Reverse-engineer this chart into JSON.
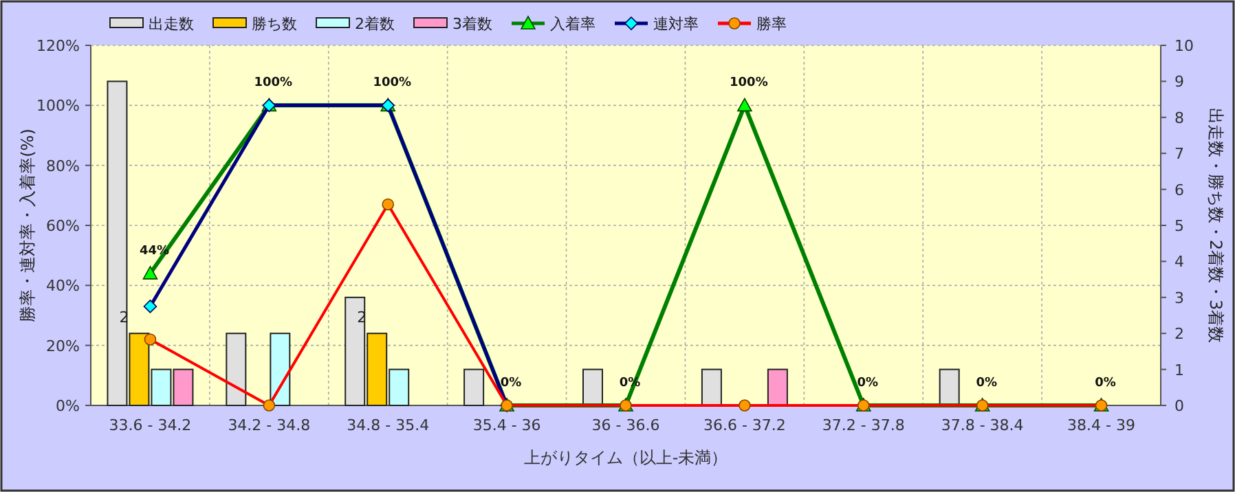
{
  "chart_data": {
    "type": "bar",
    "xlabel": "上がりタイム（以上-未満）",
    "ylabel": "勝率・連対率・入着率(%)",
    "y2label": "出走数・勝ち数・2着数・3着数",
    "categories": [
      "33.6 - 34.2",
      "34.2 - 34.8",
      "34.8 - 35.4",
      "35.4 - 36",
      "36 - 36.6",
      "36.6 - 37.2",
      "37.2 - 37.8",
      "37.8 - 38.4",
      "38.4 - 39"
    ],
    "series": [
      {
        "name": "出走数",
        "axis": "y2",
        "color": "#e0e0e0",
        "values": [
          9,
          2,
          3,
          1,
          1,
          1,
          0,
          1,
          0
        ]
      },
      {
        "name": "勝ち数",
        "axis": "y2",
        "color": "#ffcc00",
        "values": [
          2,
          0,
          2,
          0,
          0,
          0,
          0,
          0,
          0
        ],
        "value_labels": [
          "2",
          null,
          "2",
          null,
          null,
          null,
          null,
          null,
          null
        ]
      },
      {
        "name": "2着数",
        "axis": "y2",
        "color": "#c0ffff",
        "values": [
          1,
          2,
          1,
          0,
          0,
          0,
          0,
          0,
          0
        ]
      },
      {
        "name": "3着数",
        "axis": "y2",
        "color": "#ff99cc",
        "values": [
          1,
          0,
          0,
          0,
          0,
          1,
          0,
          0,
          0
        ]
      },
      {
        "name": "入着率",
        "type": "line",
        "color": "#008000",
        "marker": "triangle",
        "values": [
          44,
          100,
          100,
          0,
          0,
          100,
          0,
          0,
          0
        ],
        "value_labels": [
          "44%",
          "100%",
          "100%",
          "0%",
          "0%",
          "100%",
          "0%",
          "0%",
          "0%"
        ]
      },
      {
        "name": "連対率",
        "type": "line",
        "color": "#000080",
        "marker": "diamond",
        "values": [
          33,
          100,
          100,
          0,
          null,
          null,
          null,
          null,
          null
        ]
      },
      {
        "name": "勝率",
        "type": "line",
        "color": "#ff0000",
        "marker": "circle",
        "values": [
          22,
          0,
          67,
          0,
          0,
          0,
          0,
          0,
          0
        ]
      }
    ],
    "ylim": [
      0,
      120
    ],
    "yticks": [
      {
        "value": 0,
        "label": "0%"
      },
      {
        "value": 20,
        "label": "20%"
      },
      {
        "value": 40,
        "label": "40%"
      },
      {
        "value": 60,
        "label": "60%"
      },
      {
        "value": 80,
        "label": "80%"
      },
      {
        "value": 100,
        "label": "100%"
      },
      {
        "value": 120,
        "label": "120%"
      }
    ],
    "y2lim": [
      0,
      10
    ],
    "y2ticks": [
      0,
      1,
      2,
      3,
      4,
      5,
      6,
      7,
      8,
      9,
      10
    ],
    "grid": true,
    "legend": "top"
  }
}
